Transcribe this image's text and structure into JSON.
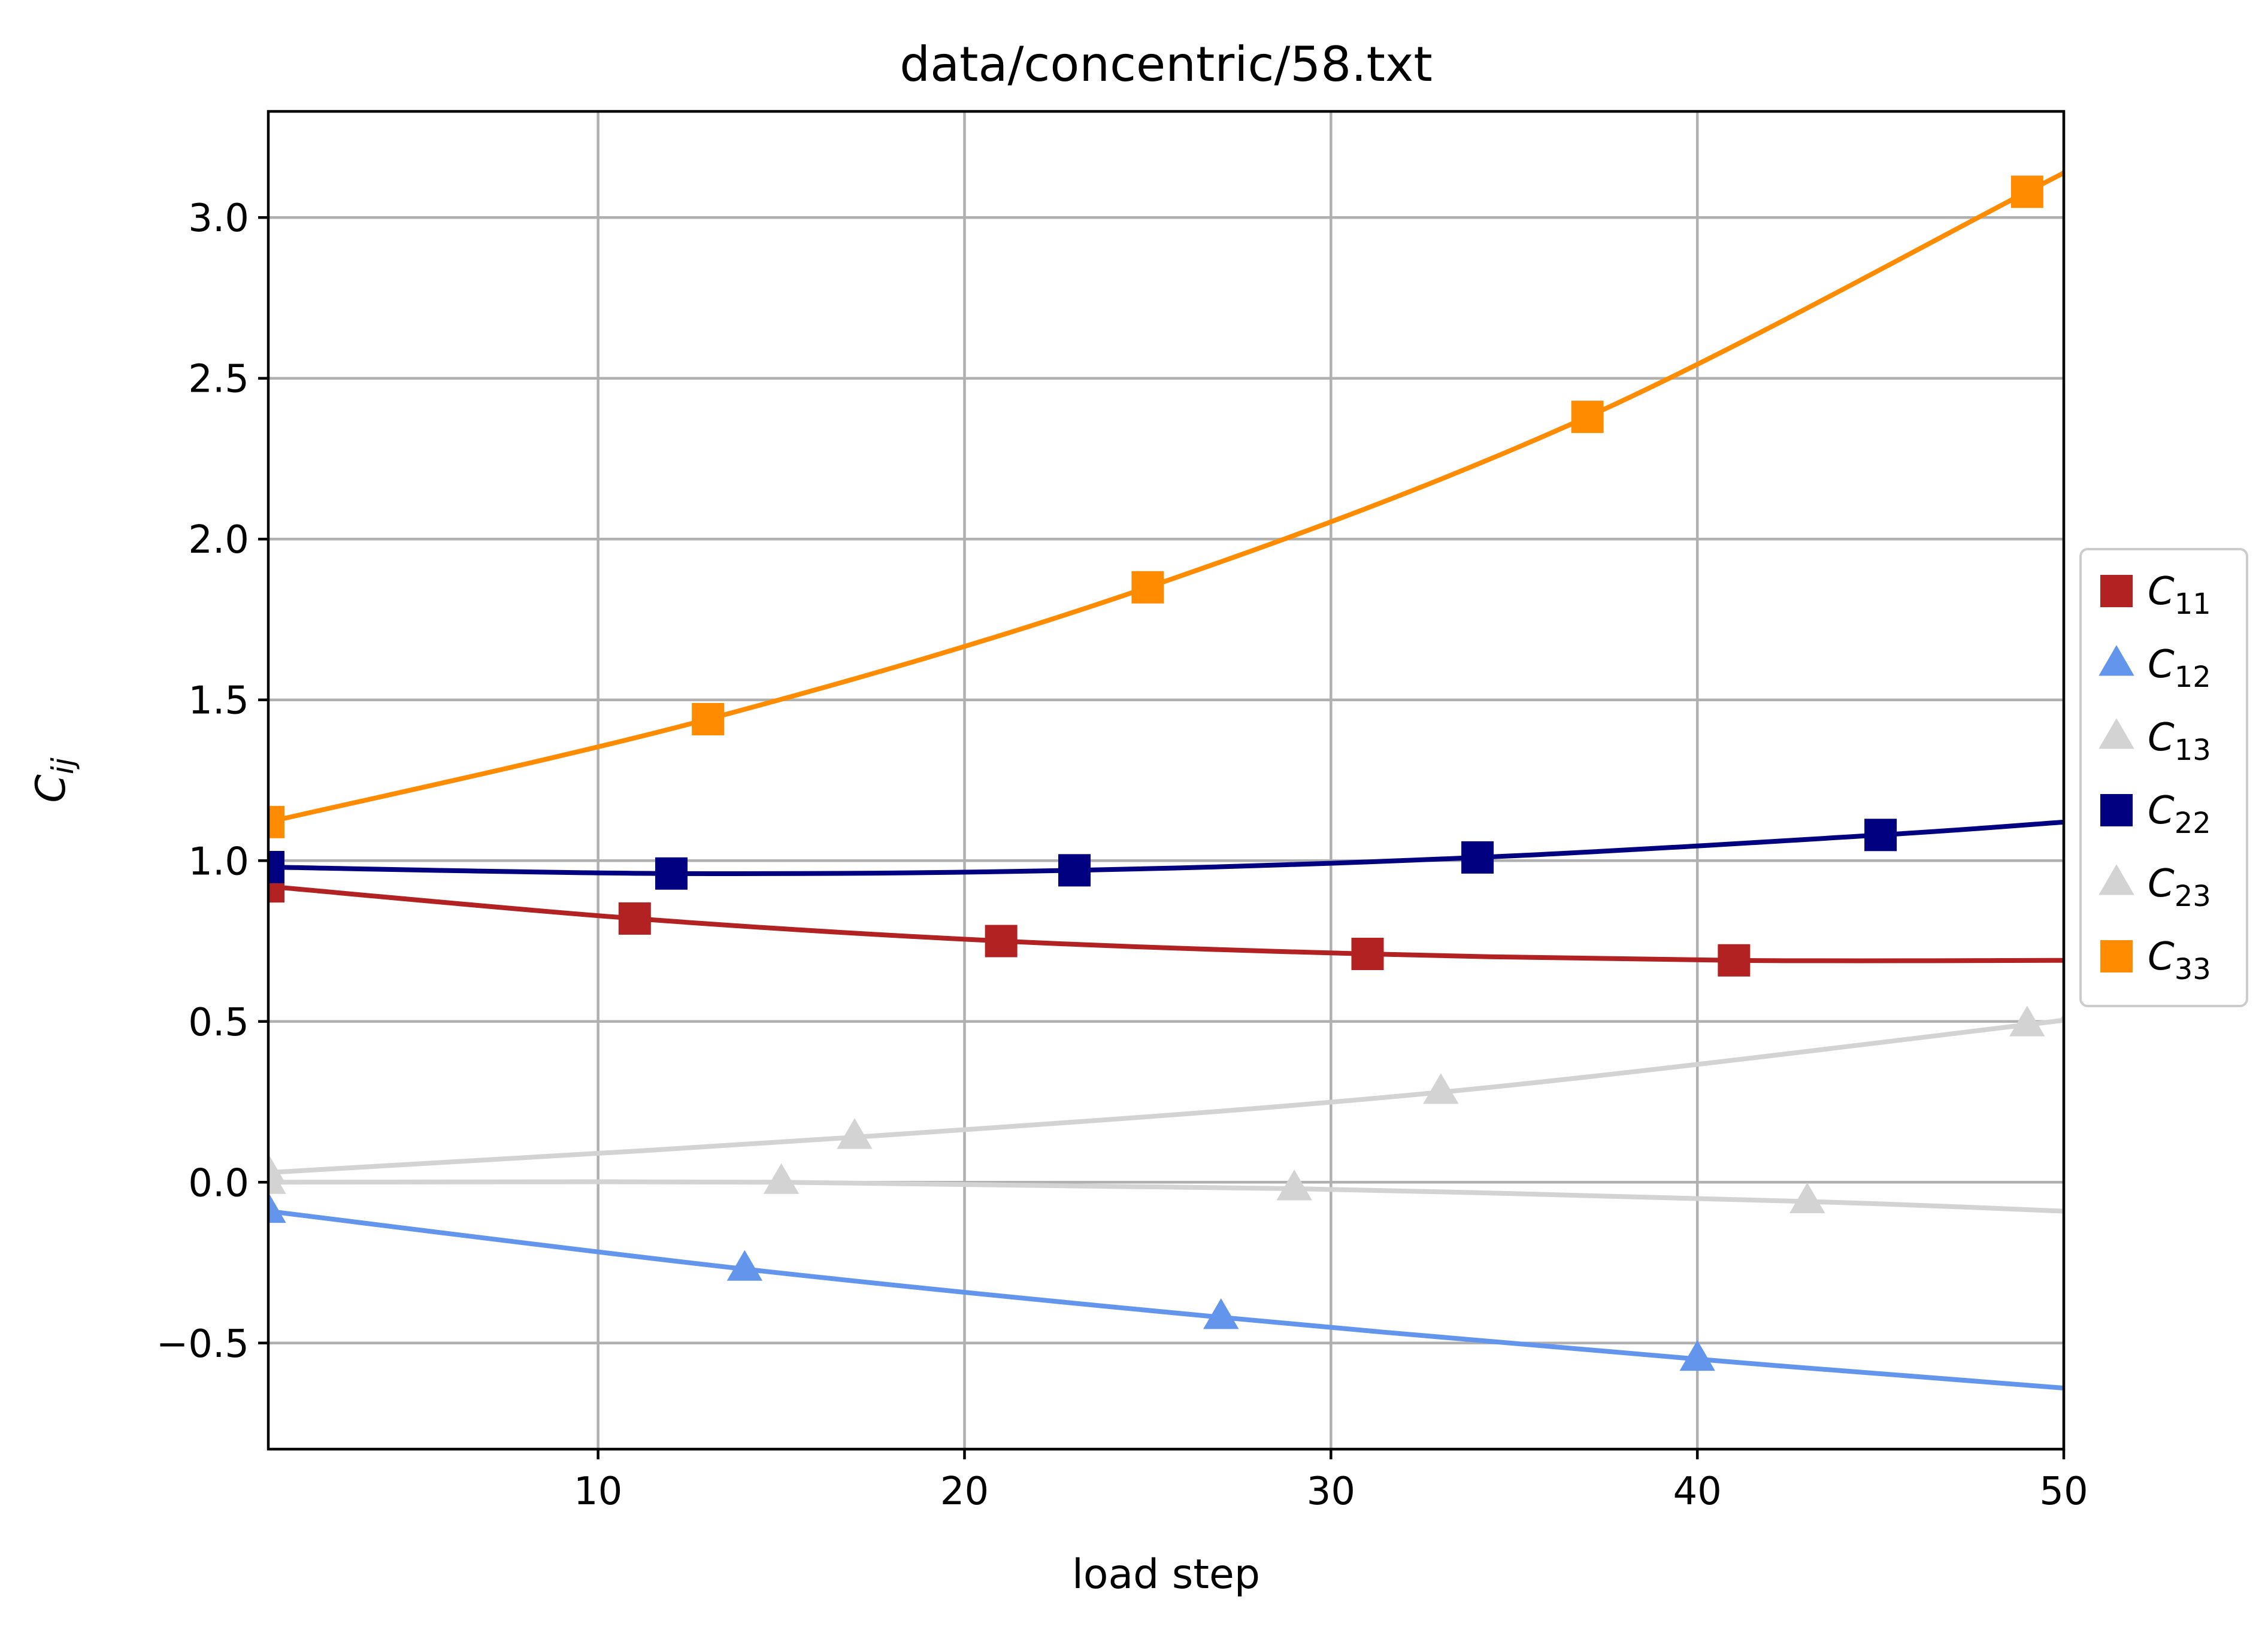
{
  "chart_data": {
    "type": "line",
    "title": "data/concentric/58.txt",
    "xlabel": "load step",
    "ylabel": "C_ij",
    "xlim": [
      1,
      50
    ],
    "ylim": [
      -0.83,
      3.33
    ],
    "xticks": [
      10,
      20,
      30,
      40,
      50
    ],
    "xtick_labels": [
      "10",
      "20",
      "30",
      "40",
      "50"
    ],
    "yticks": [
      -0.5,
      0.0,
      0.5,
      1.0,
      1.5,
      2.0,
      2.5,
      3.0
    ],
    "ytick_labels": [
      "−0.5",
      "0.0",
      "0.5",
      "1.0",
      "1.5",
      "2.0",
      "2.5",
      "3.0"
    ],
    "grid": true,
    "legend_position": "center-right outside",
    "series": [
      {
        "name": "C",
        "sub": "11",
        "color": "#b22222",
        "marker": "square",
        "x": [
          1,
          11,
          21,
          31,
          41,
          50
        ],
        "y": [
          0.92,
          0.82,
          0.75,
          0.71,
          0.69,
          0.69
        ],
        "marker_x": [
          1,
          11,
          21,
          31,
          41
        ],
        "marker_y": [
          0.92,
          0.82,
          0.75,
          0.71,
          0.69
        ]
      },
      {
        "name": "C",
        "sub": "12",
        "color": "#6495ed",
        "marker": "triangle",
        "x": [
          1,
          14,
          27,
          40,
          50
        ],
        "y": [
          -0.09,
          -0.27,
          -0.42,
          -0.55,
          -0.64
        ],
        "marker_x": [
          1,
          14,
          27,
          40
        ],
        "marker_y": [
          -0.09,
          -0.27,
          -0.42,
          -0.55
        ]
      },
      {
        "name": "C",
        "sub": "13",
        "color": "#d3d3d3",
        "marker": "triangle",
        "x": [
          1,
          15,
          29,
          43,
          50
        ],
        "y": [
          0.0,
          0.0,
          -0.02,
          -0.06,
          -0.09
        ],
        "marker_x": [
          1,
          15,
          29,
          43
        ],
        "marker_y": [
          0.0,
          0.0,
          -0.02,
          -0.06
        ]
      },
      {
        "name": "C",
        "sub": "22",
        "color": "#000080",
        "marker": "square",
        "x": [
          1,
          12,
          23,
          34,
          45,
          50
        ],
        "y": [
          0.98,
          0.96,
          0.97,
          1.01,
          1.08,
          1.12
        ],
        "marker_x": [
          1,
          12,
          23,
          34,
          45
        ],
        "marker_y": [
          0.98,
          0.96,
          0.97,
          1.01,
          1.08
        ]
      },
      {
        "name": "C",
        "sub": "23",
        "color": "#d3d3d3",
        "marker": "triangle",
        "x": [
          1,
          17,
          33,
          49,
          50
        ],
        "y": [
          0.03,
          0.14,
          0.28,
          0.49,
          0.51
        ],
        "marker_x": [
          1,
          17,
          33,
          49
        ],
        "marker_y": [
          0.03,
          0.14,
          0.28,
          0.49
        ]
      },
      {
        "name": "C",
        "sub": "33",
        "color": "#ff8c00",
        "marker": "square",
        "x": [
          1,
          13,
          25,
          37,
          49,
          50
        ],
        "y": [
          1.12,
          1.44,
          1.85,
          2.38,
          3.08,
          3.14
        ],
        "marker_x": [
          1,
          13,
          25,
          37,
          49
        ],
        "marker_y": [
          1.12,
          1.44,
          1.85,
          2.38,
          3.08
        ]
      }
    ]
  }
}
